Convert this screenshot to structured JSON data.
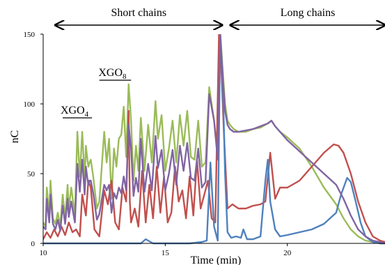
{
  "chart_data": {
    "type": "line",
    "title": "",
    "xlabel": "Time (min)",
    "ylabel": "nC",
    "xlim": [
      10,
      24
    ],
    "ylim": [
      0,
      150
    ],
    "x_ticks": [
      "10",
      "15",
      "20"
    ],
    "y_ticks": [
      "0",
      "50",
      "100",
      "150"
    ],
    "grid": false,
    "legend": "none",
    "regions": [
      {
        "label": "Short chains",
        "x_start": 10.5,
        "x_end": 17.5
      },
      {
        "label": "Long chains",
        "x_start": 17.5,
        "x_end": 24
      }
    ],
    "annotations": [
      {
        "main": "XGO",
        "sub": "4",
        "x_start": 10.8,
        "x_end": 12.0,
        "y": 90
      },
      {
        "main": "XGO",
        "sub": "8",
        "x_start": 12.3,
        "x_end": 13.6,
        "y": 117
      }
    ],
    "series": [
      {
        "color": "#9bbb59",
        "x": [
          10.0,
          10.1,
          10.15,
          10.25,
          10.3,
          10.4,
          10.5,
          10.6,
          10.7,
          10.8,
          10.9,
          11.0,
          11.05,
          11.15,
          11.3,
          11.4,
          11.5,
          11.6,
          11.7,
          11.75,
          11.8,
          11.85,
          11.9,
          11.95,
          12.05,
          12.2,
          12.3,
          12.5,
          12.6,
          12.7,
          12.8,
          12.9,
          13.0,
          13.1,
          13.2,
          13.3,
          13.4,
          13.5,
          13.6,
          13.7,
          13.8,
          13.9,
          14.0,
          14.15,
          14.3,
          14.45,
          14.6,
          14.7,
          14.85,
          15.0,
          15.15,
          15.3,
          15.45,
          15.6,
          15.75,
          15.9,
          16.05,
          16.2,
          16.35,
          16.5,
          16.65,
          16.8,
          17.0,
          17.15,
          17.25,
          17.35,
          17.45,
          17.55,
          17.65,
          17.8,
          18.0,
          18.3,
          18.6,
          18.9,
          19.2,
          19.35,
          19.5,
          19.7,
          20.0,
          20.5,
          21.0,
          21.5,
          22.0,
          22.3,
          22.6,
          22.9,
          23.2,
          23.5,
          23.8,
          24.0
        ],
        "y": [
          15,
          12,
          40,
          20,
          45,
          18,
          14,
          22,
          12,
          35,
          18,
          42,
          25,
          40,
          20,
          80,
          48,
          80,
          45,
          70,
          62,
          55,
          58,
          60,
          48,
          25,
          30,
          80,
          58,
          75,
          32,
          68,
          55,
          75,
          78,
          98,
          62,
          114,
          88,
          45,
          70,
          52,
          90,
          52,
          85,
          58,
          102,
          75,
          92,
          52,
          68,
          88,
          58,
          92,
          70,
          95,
          62,
          60,
          88,
          55,
          58,
          112,
          88,
          62,
          152,
          125,
          100,
          88,
          85,
          82,
          80,
          80,
          82,
          83,
          86,
          88,
          84,
          80,
          76,
          68,
          55,
          40,
          28,
          18,
          10,
          5,
          2,
          1,
          0,
          0
        ]
      },
      {
        "color": "#c0504d",
        "x": [
          10.0,
          10.15,
          10.3,
          10.45,
          10.6,
          10.75,
          10.9,
          11.05,
          11.2,
          11.35,
          11.5,
          11.6,
          11.75,
          11.85,
          11.95,
          12.1,
          12.3,
          12.5,
          12.65,
          12.8,
          12.95,
          13.1,
          13.25,
          13.4,
          13.5,
          13.55,
          13.6,
          13.75,
          13.9,
          14.05,
          14.2,
          14.35,
          14.5,
          14.65,
          14.8,
          14.95,
          15.1,
          15.25,
          15.4,
          15.55,
          15.7,
          15.85,
          16.0,
          16.15,
          16.3,
          16.45,
          16.6,
          16.75,
          16.9,
          17.05,
          17.2,
          17.3,
          17.4,
          17.55,
          17.75,
          18.0,
          18.3,
          18.6,
          18.9,
          19.1,
          19.3,
          19.5,
          19.7,
          20.0,
          20.5,
          21.0,
          21.5,
          21.9,
          22.1,
          22.3,
          22.6,
          22.9,
          23.2,
          23.5,
          23.8,
          24.0
        ],
        "y": [
          3,
          8,
          4,
          10,
          5,
          12,
          6,
          15,
          8,
          10,
          5,
          35,
          20,
          45,
          40,
          10,
          5,
          38,
          28,
          45,
          15,
          10,
          40,
          30,
          95,
          30,
          15,
          25,
          12,
          52,
          15,
          42,
          18,
          55,
          22,
          48,
          15,
          22,
          55,
          30,
          38,
          18,
          48,
          20,
          60,
          25,
          35,
          45,
          18,
          15,
          150,
          125,
          80,
          25,
          28,
          25,
          25,
          27,
          28,
          30,
          65,
          32,
          40,
          40,
          45,
          55,
          65,
          71,
          70,
          65,
          50,
          30,
          15,
          5,
          2,
          1
        ]
      },
      {
        "color": "#4f81bd",
        "x": [
          10.0,
          10.5,
          11.0,
          11.5,
          12.0,
          12.5,
          13.0,
          13.5,
          13.8,
          14.0,
          14.2,
          14.5,
          15.0,
          15.5,
          16.0,
          16.5,
          16.7,
          16.85,
          17.0,
          17.15,
          17.25,
          17.35,
          17.45,
          17.55,
          17.7,
          17.9,
          18.1,
          18.2,
          18.35,
          18.6,
          18.9,
          19.1,
          19.2,
          19.3,
          19.5,
          19.7,
          20.0,
          20.5,
          21.0,
          21.5,
          22.0,
          22.2,
          22.45,
          22.6,
          22.8,
          23.0,
          23.2,
          23.5,
          23.8,
          24.0
        ],
        "y": [
          0,
          0,
          0,
          0,
          0,
          0,
          0,
          0,
          0,
          0,
          3,
          0,
          0,
          0,
          0,
          1,
          2,
          58,
          12,
          2,
          150,
          120,
          50,
          8,
          4,
          5,
          4,
          10,
          3,
          3,
          5,
          45,
          60,
          30,
          10,
          5,
          6,
          8,
          10,
          14,
          22,
          35,
          47,
          44,
          30,
          15,
          5,
          1,
          0,
          0
        ]
      },
      {
        "color": "#8064a2",
        "x": [
          10.0,
          10.1,
          10.15,
          10.25,
          10.3,
          10.4,
          10.5,
          10.6,
          10.7,
          10.8,
          10.9,
          11.0,
          11.05,
          11.15,
          11.3,
          11.4,
          11.5,
          11.6,
          11.7,
          11.75,
          11.8,
          11.85,
          11.9,
          11.95,
          12.05,
          12.2,
          12.3,
          12.5,
          12.6,
          12.7,
          12.8,
          12.9,
          13.0,
          13.1,
          13.2,
          13.3,
          13.4,
          13.5,
          13.6,
          13.7,
          13.8,
          13.9,
          14.0,
          14.15,
          14.3,
          14.45,
          14.6,
          14.7,
          14.85,
          15.0,
          15.15,
          15.3,
          15.45,
          15.6,
          15.75,
          15.9,
          16.05,
          16.2,
          16.35,
          16.5,
          16.65,
          16.8,
          17.0,
          17.15,
          17.25,
          17.35,
          17.45,
          17.55,
          17.65,
          17.8,
          18.0,
          18.3,
          18.6,
          18.9,
          19.2,
          19.35,
          19.5,
          19.7,
          20.0,
          20.5,
          21.0,
          21.5,
          22.0,
          22.3,
          22.6,
          22.9,
          23.2,
          23.5,
          23.8,
          24.0
        ],
        "y": [
          12,
          10,
          32,
          15,
          35,
          14,
          10,
          17,
          9,
          27,
          14,
          32,
          19,
          30,
          15,
          57,
          37,
          60,
          35,
          55,
          48,
          42,
          45,
          45,
          36,
          17,
          21,
          42,
          38,
          42,
          22,
          36,
          32,
          40,
          36,
          48,
          38,
          85,
          68,
          34,
          47,
          37,
          75,
          37,
          57,
          38,
          77,
          54,
          67,
          38,
          50,
          67,
          42,
          70,
          52,
          72,
          47,
          45,
          68,
          40,
          44,
          107,
          88,
          60,
          150,
          120,
          95,
          85,
          82,
          80,
          80,
          81,
          82,
          84,
          86,
          88,
          84,
          80,
          74,
          66,
          58,
          50,
          42,
          32,
          20,
          10,
          5,
          2,
          1,
          0
        ]
      }
    ]
  }
}
